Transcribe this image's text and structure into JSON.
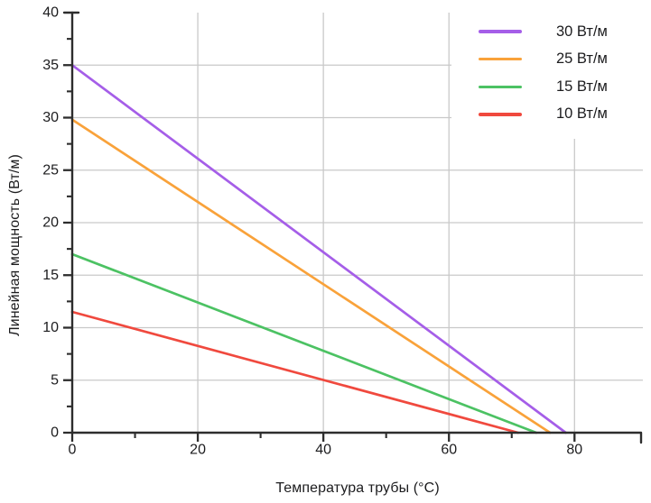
{
  "chart_data": {
    "type": "line",
    "title": "",
    "xlabel": "Температура трубы (°C)",
    "ylabel": "Линейная мощность (Вт/м)",
    "xlim": [
      0,
      90.6
    ],
    "ylim": [
      0,
      40
    ],
    "x_ticks": [
      0,
      20,
      40,
      60,
      80
    ],
    "x_minor_ticks": [
      10,
      30,
      50,
      70
    ],
    "y_ticks": [
      0,
      5,
      10,
      15,
      20,
      25,
      30,
      35,
      40
    ],
    "y_minor_ticks": [
      2.5,
      7.5,
      12.5,
      17.5,
      22.5,
      27.5,
      32.5,
      37.5
    ],
    "x_gridlines": [
      20,
      40,
      60,
      80
    ],
    "y_gridlines": [
      5,
      10,
      15,
      20,
      25,
      30,
      35
    ],
    "grid": true,
    "legend_position": "top-right",
    "series": [
      {
        "name": "30 Вт/м",
        "color": "#a55ee8",
        "points": [
          [
            0,
            35.0
          ],
          [
            78.6,
            0
          ]
        ]
      },
      {
        "name": "25 Вт/м",
        "color": "#f9a23a",
        "points": [
          [
            0,
            29.8
          ],
          [
            76.1,
            0
          ]
        ]
      },
      {
        "name": "15 Вт/м",
        "color": "#4cc263",
        "points": [
          [
            0,
            17.0
          ],
          [
            73.9,
            0
          ]
        ]
      },
      {
        "name": "10 Вт/м",
        "color": "#f0493e",
        "points": [
          [
            0,
            11.5
          ],
          [
            71.0,
            0
          ]
        ]
      }
    ],
    "colors": {
      "axis": "#2d2d2d",
      "grid": "#c9c9c9",
      "tick_label": "#1c1c1e",
      "axis_label": "#1c1c1e",
      "legend_text": "#1c1c1e",
      "background": "#ffffff"
    }
  }
}
